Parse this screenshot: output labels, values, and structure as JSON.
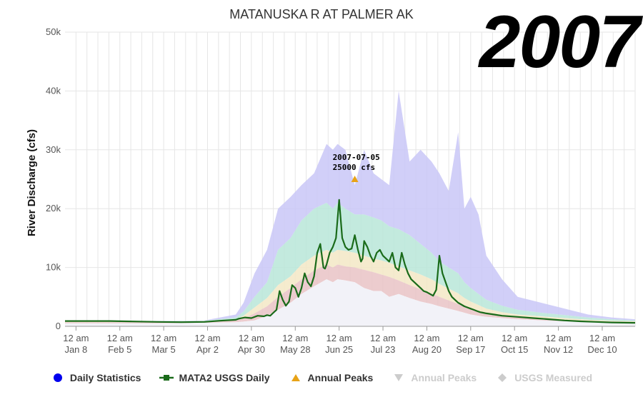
{
  "year_stamp": "2007",
  "chart_data": {
    "type": "area",
    "title": "MATANUSKA R AT PALMER AK",
    "ylabel": "River Discharge (cfs)",
    "xlabel": "",
    "ylim": [
      0,
      50000
    ],
    "y_ticks": [
      "0",
      "10k",
      "20k",
      "30k",
      "40k",
      "50k"
    ],
    "x_tick_labels": [
      [
        "12 am",
        "Jan 8"
      ],
      [
        "12 am",
        "Feb 5"
      ],
      [
        "12 am",
        "Mar 5"
      ],
      [
        "12 am",
        "Apr 2"
      ],
      [
        "12 am",
        "Apr 30"
      ],
      [
        "12 am",
        "May 28"
      ],
      [
        "12 am",
        "Jun 25"
      ],
      [
        "12 am",
        "Jul 23"
      ],
      [
        "12 am",
        "Aug 20"
      ],
      [
        "12 am",
        "Sep 17"
      ],
      [
        "12 am",
        "Oct 15"
      ],
      [
        "12 am",
        "Nov 12"
      ],
      [
        "12 am",
        "Dec 10"
      ]
    ],
    "grid": true,
    "legend_position": "bottom",
    "daily_statistics_bands": {
      "day_of_year": [
        1,
        60,
        90,
        110,
        115,
        122,
        130,
        137,
        145,
        152,
        160,
        168,
        172,
        175,
        180,
        186,
        192,
        198,
        203,
        208,
        214,
        221,
        228,
        235,
        240,
        246,
        252,
        256,
        260,
        265,
        270,
        280,
        290,
        305,
        320,
        335,
        350,
        365
      ],
      "max": [
        900,
        900,
        1000,
        2000,
        4000,
        9000,
        13000,
        20000,
        22000,
        24000,
        26000,
        31000,
        30000,
        31000,
        30000,
        24000,
        30000,
        26000,
        25000,
        24000,
        40000,
        28000,
        30000,
        28000,
        26000,
        23000,
        33000,
        20000,
        22000,
        19000,
        12000,
        8000,
        5000,
        4000,
        3000,
        2000,
        1500,
        1200
      ],
      "p75": [
        850,
        850,
        950,
        1500,
        2500,
        5000,
        7500,
        13000,
        15000,
        18000,
        20000,
        21000,
        20000,
        21000,
        20000,
        19000,
        19000,
        18500,
        18000,
        17000,
        16500,
        15500,
        14000,
        12500,
        11000,
        10000,
        9000,
        7500,
        6500,
        5500,
        4500,
        3500,
        2800,
        2300,
        1900,
        1500,
        1200,
        1000
      ],
      "p50": [
        800,
        800,
        900,
        1200,
        1800,
        3200,
        4800,
        7000,
        8500,
        10500,
        12000,
        13000,
        12500,
        13000,
        12800,
        12500,
        12000,
        11500,
        11200,
        10800,
        10200,
        9500,
        8800,
        8000,
        7200,
        6400,
        5600,
        4800,
        4200,
        3600,
        3000,
        2400,
        2000,
        1700,
        1400,
        1100,
        950,
        850
      ],
      "p25": [
        700,
        700,
        800,
        1000,
        1300,
        2200,
        3400,
        5000,
        6500,
        8000,
        9500,
        10500,
        10000,
        10500,
        10200,
        10000,
        9600,
        9200,
        8800,
        8400,
        7800,
        7000,
        6300,
        5600,
        5000,
        4400,
        3800,
        3300,
        2900,
        2500,
        2100,
        1800,
        1500,
        1300,
        1100,
        900,
        800,
        700
      ],
      "min": [
        500,
        500,
        600,
        700,
        800,
        1000,
        1800,
        2800,
        4000,
        5500,
        6800,
        8000,
        7500,
        8000,
        7800,
        7500,
        6500,
        6000,
        6000,
        5000,
        5500,
        4800,
        4200,
        3800,
        3400,
        3000,
        2600,
        2300,
        2000,
        1800,
        1600,
        1400,
        1200,
        1000,
        850,
        700,
        600,
        500
      ]
    },
    "series": [
      {
        "name": "MATA2 USGS Daily",
        "color": "#1a6b1a",
        "day_of_year": [
          1,
          30,
          60,
          75,
          90,
          100,
          110,
          112,
          116,
          120,
          124,
          128,
          130,
          132,
          134,
          136,
          138,
          140,
          142,
          144,
          146,
          148,
          150,
          152,
          154,
          156,
          158,
          160,
          162,
          164,
          166,
          167,
          168,
          170,
          172,
          174,
          176,
          178,
          180,
          182,
          184,
          186,
          188,
          189,
          190,
          191,
          192,
          194,
          196,
          198,
          200,
          202,
          204,
          206,
          208,
          210,
          212,
          214,
          216,
          218,
          220,
          222,
          224,
          226,
          228,
          230,
          232,
          234,
          236,
          238,
          240,
          242,
          244,
          246,
          248,
          250,
          252,
          254,
          256,
          258,
          260,
          262,
          264,
          266,
          268,
          270,
          275,
          280,
          290,
          300,
          310,
          320,
          330,
          340,
          350,
          365
        ],
        "values": [
          900,
          900,
          750,
          700,
          750,
          950,
          1100,
          1300,
          1500,
          1400,
          1800,
          1700,
          1900,
          1800,
          2300,
          2800,
          6000,
          4500,
          3500,
          4200,
          7000,
          6500,
          5000,
          6500,
          9000,
          7500,
          6800,
          8500,
          12500,
          14000,
          10000,
          9800,
          10500,
          12500,
          13500,
          15000,
          21500,
          15000,
          13500,
          13000,
          13200,
          15500,
          13000,
          12000,
          11000,
          11500,
          14500,
          13500,
          12000,
          11000,
          12500,
          13000,
          12000,
          11500,
          11000,
          12500,
          10000,
          9500,
          12500,
          10500,
          9000,
          8000,
          7500,
          7000,
          6500,
          6000,
          5800,
          5500,
          5200,
          6200,
          12000,
          9000,
          7500,
          6000,
          5000,
          4500,
          4000,
          3700,
          3400,
          3200,
          3000,
          2800,
          2600,
          2400,
          2300,
          2200,
          2000,
          1800,
          1600,
          1400,
          1200,
          1000,
          850,
          750,
          650,
          600
        ]
      }
    ],
    "annual_peak": {
      "date": "2007-07-05",
      "day_of_year": 186,
      "value": 25000,
      "label_line1": "2007-07-05",
      "label_line2": "25000 cfs",
      "color": "#e8a317"
    },
    "colors": {
      "max_band": "#c9c7f7",
      "p75_band": "#b9e6d8",
      "p50_band": "#d6e6c4",
      "p25_band": "#f3e8c6",
      "min_band": "#e9c3c6",
      "grid": "#e6e6e6",
      "daily_statistics_dot": "#0000ee"
    }
  },
  "legend": [
    {
      "label": "Daily Statistics",
      "symbol": "circle",
      "color": "#0000ee",
      "active": true
    },
    {
      "label": "MATA2 USGS Daily",
      "symbol": "line-square",
      "color": "#1a6b1a",
      "active": true
    },
    {
      "label": "Annual Peaks",
      "symbol": "triangle-up",
      "color": "#e8a317",
      "active": true
    },
    {
      "label": "Annual Peaks",
      "symbol": "triangle-down",
      "color": "#cccccc",
      "active": false
    },
    {
      "label": "USGS Measured",
      "symbol": "diamond",
      "color": "#cccccc",
      "active": false
    }
  ]
}
